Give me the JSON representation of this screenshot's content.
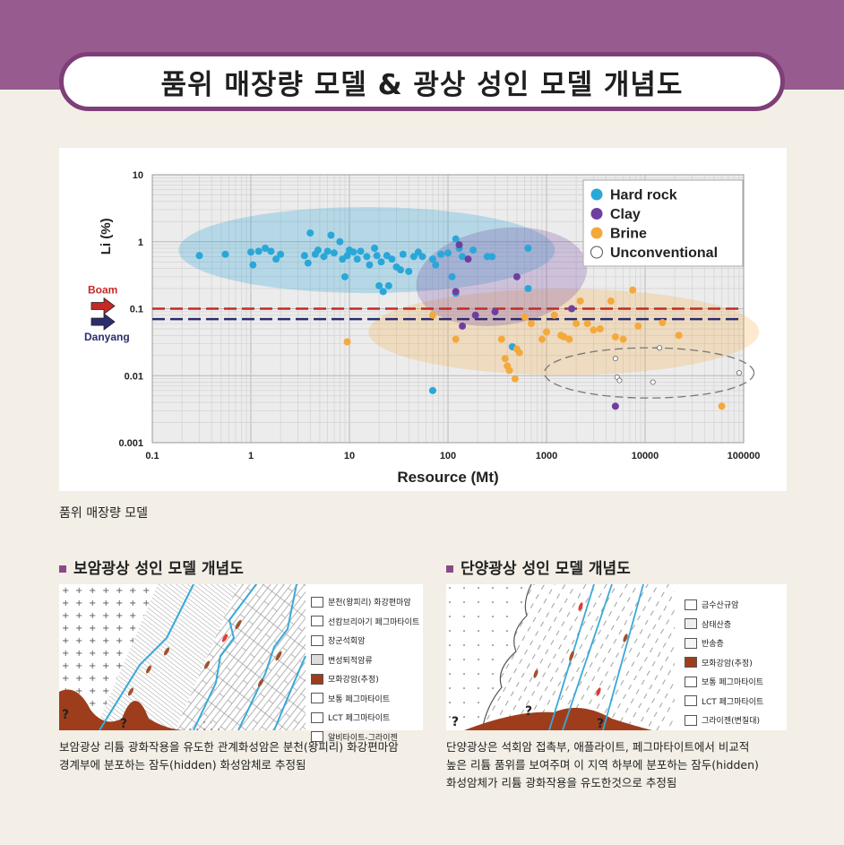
{
  "header": {
    "title": "품위 매장량 모델 & 광상 성인 모델 개념도"
  },
  "chart_caption": "품위 매장량 모델",
  "markers": {
    "boam": "Boam",
    "danyang": "Danyang"
  },
  "colors": {
    "hard_rock": "#2aa7d9",
    "clay": "#6f3fa0",
    "brine": "#f4a93b",
    "boam_line": "#c62828",
    "danyang_line": "#2c2c6e",
    "header": "#975b90"
  },
  "chart_data": {
    "type": "scatter",
    "xlabel": "Resource (Mt)",
    "ylabel": "Li (%)",
    "xscale": "log",
    "yscale": "log",
    "xlim": [
      0.1,
      100000
    ],
    "ylim": [
      0.001,
      10
    ],
    "x_ticks": [
      "0.1",
      "1",
      "10",
      "100",
      "1000",
      "10000",
      "100000"
    ],
    "y_ticks": [
      "0.001",
      "0.01",
      "0.1",
      "1",
      "10"
    ],
    "grid": true,
    "legend_position": "top-right",
    "reference_lines": [
      {
        "label": "Boam",
        "y": 0.1
      },
      {
        "label": "Danyang",
        "y": 0.07
      }
    ],
    "series": [
      {
        "name": "Hard rock",
        "points": [
          [
            0.3,
            0.62
          ],
          [
            0.55,
            0.65
          ],
          [
            1.0,
            0.7
          ],
          [
            1.05,
            0.45
          ],
          [
            1.2,
            0.72
          ],
          [
            1.4,
            0.8
          ],
          [
            1.6,
            0.72
          ],
          [
            1.8,
            0.55
          ],
          [
            2.0,
            0.65
          ],
          [
            3.5,
            0.62
          ],
          [
            3.8,
            0.48
          ],
          [
            4.0,
            1.35
          ],
          [
            4.5,
            0.65
          ],
          [
            4.8,
            0.75
          ],
          [
            5.5,
            0.6
          ],
          [
            6.0,
            0.72
          ],
          [
            6.5,
            1.25
          ],
          [
            7.0,
            0.68
          ],
          [
            8.0,
            1.0
          ],
          [
            8.5,
            0.55
          ],
          [
            9.0,
            0.3
          ],
          [
            9.5,
            0.62
          ],
          [
            10,
            0.75
          ],
          [
            11,
            0.7
          ],
          [
            12,
            0.55
          ],
          [
            13,
            0.72
          ],
          [
            15,
            0.6
          ],
          [
            16,
            0.45
          ],
          [
            18,
            0.8
          ],
          [
            19,
            0.62
          ],
          [
            20,
            0.22
          ],
          [
            21,
            0.5
          ],
          [
            22,
            0.18
          ],
          [
            24,
            0.62
          ],
          [
            25,
            0.22
          ],
          [
            27,
            0.55
          ],
          [
            30,
            0.42
          ],
          [
            33,
            0.38
          ],
          [
            35,
            0.65
          ],
          [
            40,
            0.36
          ],
          [
            45,
            0.6
          ],
          [
            50,
            0.7
          ],
          [
            55,
            0.6
          ],
          [
            70,
            0.55
          ],
          [
            75,
            0.45
          ],
          [
            85,
            0.65
          ],
          [
            100,
            0.68
          ],
          [
            110,
            0.3
          ],
          [
            120,
            1.1
          ],
          [
            130,
            0.8
          ],
          [
            140,
            0.6
          ],
          [
            180,
            0.75
          ],
          [
            250,
            0.6
          ],
          [
            280,
            0.6
          ],
          [
            450,
            0.027
          ],
          [
            650,
            0.8
          ],
          [
            650,
            0.2
          ],
          [
            70,
            0.006
          ],
          [
            120,
            0.17
          ]
        ]
      },
      {
        "name": "Clay",
        "points": [
          [
            120,
            0.18
          ],
          [
            130,
            0.9
          ],
          [
            140,
            0.055
          ],
          [
            160,
            0.55
          ],
          [
            190,
            0.08
          ],
          [
            300,
            0.09
          ],
          [
            500,
            0.3
          ],
          [
            1800,
            0.1
          ],
          [
            5000,
            0.0035
          ]
        ]
      },
      {
        "name": "Brine",
        "points": [
          [
            9.5,
            0.032
          ],
          [
            70,
            0.08
          ],
          [
            120,
            0.035
          ],
          [
            350,
            0.035
          ],
          [
            380,
            0.018
          ],
          [
            400,
            0.014
          ],
          [
            420,
            0.012
          ],
          [
            480,
            0.009
          ],
          [
            500,
            0.025
          ],
          [
            530,
            0.022
          ],
          [
            600,
            0.075
          ],
          [
            700,
            0.06
          ],
          [
            900,
            0.035
          ],
          [
            1000,
            0.045
          ],
          [
            1200,
            0.08
          ],
          [
            1400,
            0.04
          ],
          [
            1500,
            0.038
          ],
          [
            1700,
            0.035
          ],
          [
            2000,
            0.06
          ],
          [
            2200,
            0.13
          ],
          [
            2600,
            0.06
          ],
          [
            3000,
            0.048
          ],
          [
            3500,
            0.05
          ],
          [
            4500,
            0.13
          ],
          [
            5000,
            0.038
          ],
          [
            6000,
            0.035
          ],
          [
            7500,
            0.19
          ],
          [
            8500,
            0.055
          ],
          [
            15000,
            0.062
          ],
          [
            22000,
            0.04
          ],
          [
            60000,
            0.0035
          ]
        ]
      },
      {
        "name": "Unconventional",
        "points": [
          [
            5000,
            0.018
          ],
          [
            5200,
            0.0095
          ],
          [
            5500,
            0.0085
          ],
          [
            12000,
            0.008
          ],
          [
            14000,
            0.026
          ],
          [
            90000,
            0.011
          ]
        ]
      }
    ]
  },
  "boam": {
    "heading": "보암광상 성인 모델 개념도",
    "legend": [
      "분천(왕피리) 화강편마암",
      "선캄브리아기 페그마타이트",
      "장군석회암",
      "변성퇴적암류",
      "모화강암(추정)",
      "보통 페그마타이트",
      "LCT 페그마타이트",
      "알비타이트-그라이젠"
    ],
    "question": "?",
    "desc_lines": [
      "보암광상 리튬 광화작용을 유도한 관계화성암은 분천(왕피리) 화강편마암",
      "경계부에 분포하는 잠두(hidden) 화성암체로 추정됨"
    ]
  },
  "danyang": {
    "heading": "단양광상 성인 모델 개념도",
    "legend": [
      "금수산규암",
      "삼태산층",
      "반송층",
      "모화강암(추정)",
      "보통 페그마타이트",
      "LCT 페그마타이트",
      "그라이젠(변질대)"
    ],
    "question": "?",
    "desc_lines": [
      "단양광상은 석회암 접촉부, 애플라이트, 페그마타이트에서 비교적",
      "높은 리튬 품위를 보여주며 이 지역 하부에 분포하는 잠두(hidden)",
      "화성암체가 리튬 광화작용을 유도한것으로 추정됨"
    ]
  }
}
